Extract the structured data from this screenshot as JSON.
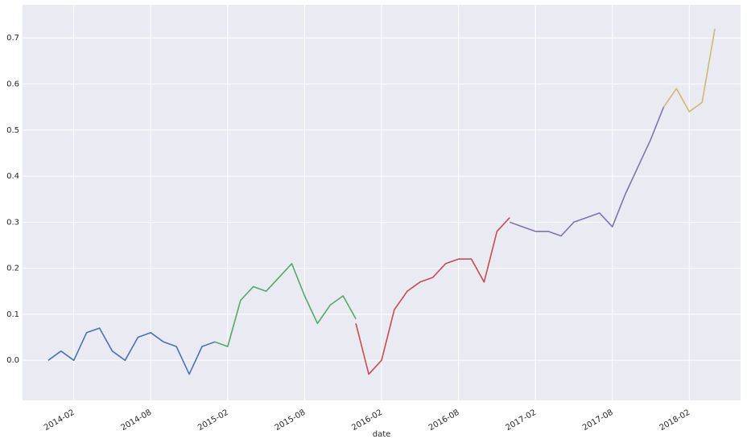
{
  "chart_data": {
    "type": "line",
    "x_label": "date",
    "xlim": [
      "2013-10",
      "2018-06"
    ],
    "xticks": [
      "2014-02",
      "2014-08",
      "2015-02",
      "2015-08",
      "2016-02",
      "2016-08",
      "2017-02",
      "2017-08",
      "2018-02"
    ],
    "ylim": [
      -0.087,
      0.772
    ],
    "yticks": [
      {
        "value": 0,
        "label": "0.0"
      },
      0.1,
      0.2,
      0.3,
      0.4,
      0.5,
      0.6,
      0.7
    ],
    "grid": true,
    "series": [
      {
        "color": "#4c72b0",
        "x": [
          "2013-12",
          "2014-01",
          "2014-02",
          "2014-03",
          "2014-04",
          "2014-05",
          "2014-06",
          "2014-07",
          "2014-08",
          "2014-09",
          "2014-10",
          "2014-11",
          "2014-12",
          "2015-01"
        ],
        "values": [
          0.0,
          0.02,
          0.0,
          0.06,
          0.07,
          0.02,
          0.0,
          0.05,
          0.06,
          0.04,
          0.03,
          -0.03,
          0.03,
          0.04
        ]
      },
      {
        "color": "#55a868",
        "x": [
          "2015-01",
          "2015-02",
          "2015-03",
          "2015-04",
          "2015-05",
          "2015-06",
          "2015-07",
          "2015-08",
          "2015-09",
          "2015-10",
          "2015-11",
          "2015-12"
        ],
        "values": [
          0.04,
          0.03,
          0.13,
          0.16,
          0.15,
          0.18,
          0.21,
          0.14,
          0.08,
          0.12,
          0.14,
          0.09
        ]
      },
      {
        "color": "#c44e52",
        "x": [
          "2015-12",
          "2016-01",
          "2016-02",
          "2016-03",
          "2016-04",
          "2016-05",
          "2016-06",
          "2016-07",
          "2016-08",
          "2016-09",
          "2016-10",
          "2016-11",
          "2016-12"
        ],
        "values": [
          0.08,
          -0.03,
          0.0,
          0.11,
          0.15,
          0.17,
          0.18,
          0.21,
          0.22,
          0.22,
          0.17,
          0.28,
          0.31
        ]
      },
      {
        "color": "#8172b2",
        "x": [
          "2016-12",
          "2017-01",
          "2017-02",
          "2017-03",
          "2017-04",
          "2017-05",
          "2017-06",
          "2017-07",
          "2017-08",
          "2017-09",
          "2017-10",
          "2017-11",
          "2017-12"
        ],
        "values": [
          0.3,
          0.29,
          0.28,
          0.28,
          0.27,
          0.3,
          0.31,
          0.32,
          0.29,
          0.36,
          0.42,
          0.48,
          0.55
        ]
      },
      {
        "color": "#ccb974",
        "x": [
          "2017-12",
          "2018-01",
          "2018-02",
          "2018-03",
          "2018-04"
        ],
        "values": [
          0.55,
          0.59,
          0.54,
          0.56,
          0.72
        ]
      }
    ]
  }
}
